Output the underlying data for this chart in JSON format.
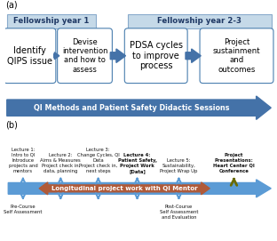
{
  "bg_color": "#ffffff",
  "panel_a_label": "(a)",
  "panel_b_label": "(b)",
  "fy1_box": "Fellowship year 1",
  "fy23_box": "Fellowship year 2-3",
  "step1_text": "Identify\nQIPS issue",
  "step2_text": "Devise\nintervention\nand how to\nassess",
  "step3_text": "PDSA cycles\nto improve\nprocess",
  "step4_text": "Project\nsustainment\nand\noutcomes",
  "qi_arrow_text": "QI Methods and Patient Safety Didactic Sessions",
  "box_border_color": "#4a7faf",
  "header_fill": "#c5d9e8",
  "header_text_color": "#1f3864",
  "arrow_color": "#4472a8",
  "qi_arrow_color": "#4472a8",
  "longitudinal_arrow_color": "#a0522d",
  "longitudinal_text": "Longitudinal project work with QI Mentor",
  "lectures": [
    "Lecture 1:\nIntro to QI\nIntroduce\nprojects and\nmentors",
    "Lecture 2:\nAims & Measures\nProject check in,\ndata, planning",
    "Lecture 3:\nChange Cycles, QI\nData\nProject check in,\nnext steps",
    "Lecture 4:\nPatient Safety,\nProject Work\n[Data]",
    "Lecture 5:\nSustainability,\nProject Wrap Up",
    "Project\nPresentations:\nHeart Center QI\nConference"
  ],
  "lecture_bold": [
    false,
    false,
    false,
    true,
    false,
    true
  ],
  "blue_arrow_color": "#5b9bd5",
  "green_arrow_color": "#6b6b00",
  "pre_course_text": "Pre-Course\nSelf Assessment",
  "post_course_text": "Post-Course\nSelf Assessment\nand Evaluation"
}
